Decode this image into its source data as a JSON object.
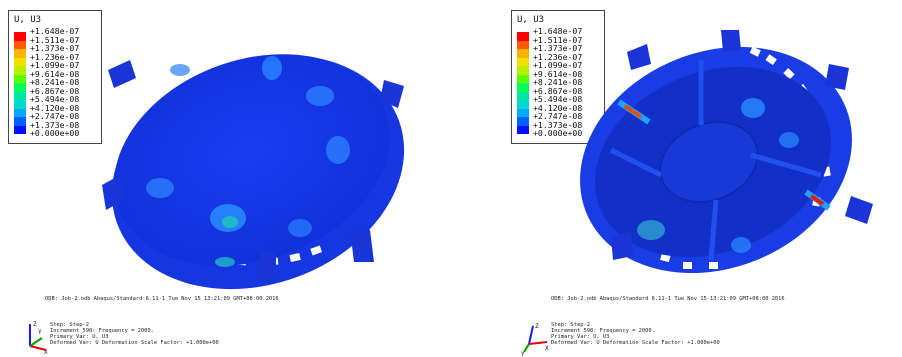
{
  "panels": [
    {
      "legend": {
        "title": "U, U3",
        "values": [
          "+1.648e-07",
          "+1.511e-07",
          "+1.373e-07",
          "+1.236e-07",
          "+1.099e-07",
          "+9.614e-08",
          "+8.241e-08",
          "+6.867e-08",
          "+5.494e-08",
          "+4.120e-08",
          "+2.747e-08",
          "+1.373e-08",
          "+0.000e+00"
        ],
        "colors": [
          "#ff0000",
          "#ff5a00",
          "#ffb400",
          "#f2e000",
          "#b8f000",
          "#5aff00",
          "#00ff5a",
          "#00e8a0",
          "#00d8d0",
          "#00a8ff",
          "#0060ff",
          "#0010ff"
        ]
      },
      "odb_line": "ODB: Job-2.odb    Abaqus/Standard 6.11-1    Tue Nov 15 13:21:09 GMT+08:00 2016",
      "step_lines": [
        "Step: Step-2",
        "Increment    590: Frequency =    2000.",
        "Primary Var: U, U3",
        "Deformed Var: U   Deformation Scale Factor: +1.000e+00"
      ],
      "triad": {
        "x": "X",
        "y": "Y",
        "z": "Z"
      }
    },
    {
      "legend": {
        "title": "U, U3",
        "values": [
          "+1.648e-07",
          "+1.511e-07",
          "+1.373e-07",
          "+1.236e-07",
          "+1.099e-07",
          "+9.614e-08",
          "+8.241e-08",
          "+6.867e-08",
          "+5.494e-08",
          "+4.120e-08",
          "+2.747e-08",
          "+1.373e-08",
          "+0.000e+00"
        ],
        "colors": [
          "#ff0000",
          "#ff5a00",
          "#ffb400",
          "#f2e000",
          "#b8f000",
          "#5aff00",
          "#00ff5a",
          "#00e8a0",
          "#00d8d0",
          "#00a8ff",
          "#0060ff",
          "#0010ff"
        ]
      },
      "odb_line": "ODB: Job-2.odb    Abaqus/Standard 6.11-1    Tue Nov 15 13:21:09 GMT+08:00 2016",
      "step_lines": [
        "Step: Step-2",
        "Increment    590: Frequency =    2000.",
        "Primary Var: U, U3",
        "Deformed Var: U   Deformation Scale Factor: +1.000e+00"
      ],
      "triad": {
        "x": "X",
        "y": "Y",
        "z": "Z"
      }
    }
  ]
}
